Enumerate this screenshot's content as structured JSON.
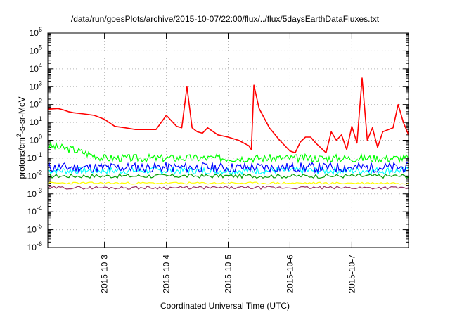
{
  "chart_data": {
    "type": "line",
    "title": "/data/run/goesPlots/archive/2015-10-07/22:00/flux/../flux/5daysEarthDataFluxes.txt",
    "xlabel": "Coordinated Universal Time (UTC)",
    "ylabel": {
      "pre": "protons/cm",
      "sup": "2",
      "post": "-s-sr-MeV"
    },
    "x_range": [
      "2015-10-02T02:00",
      "2015-10-07T22:00"
    ],
    "x_ticks": [
      "2015-10-3",
      "2015-10-4",
      "2015-10-5",
      "2015-10-6",
      "2015-10-7"
    ],
    "y_scale": "log",
    "ylim": [
      1e-06,
      1000000.0
    ],
    "y_ticks": [
      {
        "base": "10",
        "exp": "-6"
      },
      {
        "base": "10",
        "exp": "-5"
      },
      {
        "base": "10",
        "exp": "-4"
      },
      {
        "base": "10",
        "exp": "-3"
      },
      {
        "base": "10",
        "exp": "-2"
      },
      {
        "base": "10",
        "exp": "-1"
      },
      {
        "base": "10",
        "exp": "0"
      },
      {
        "base": "10",
        "exp": "1"
      },
      {
        "base": "10",
        "exp": "2"
      },
      {
        "base": "10",
        "exp": "3"
      },
      {
        "base": "10",
        "exp": "4"
      },
      {
        "base": "10",
        "exp": "5"
      },
      {
        "base": "10",
        "exp": "6"
      }
    ],
    "grid": true,
    "legend": "none",
    "series": [
      {
        "color": "#ff0000",
        "x": [
          "2015-10-02T02:00",
          "2015-10-02T06:00",
          "2015-10-02T08:00",
          "2015-10-02T10:00",
          "2015-10-02T12:00",
          "2015-10-02T16:00",
          "2015-10-02T20:00",
          "2015-10-03T00:00",
          "2015-10-03T04:00",
          "2015-10-03T08:00",
          "2015-10-03T12:00",
          "2015-10-03T16:00",
          "2015-10-03T20:00",
          "2015-10-04T00:00",
          "2015-10-04T04:00",
          "2015-10-04T06:00",
          "2015-10-04T08:00",
          "2015-10-04T10:00",
          "2015-10-04T12:00",
          "2015-10-04T14:00",
          "2015-10-04T16:00",
          "2015-10-04T20:00",
          "2015-10-05T00:00",
          "2015-10-05T04:00",
          "2015-10-05T08:00",
          "2015-10-05T09:00",
          "2015-10-05T10:00",
          "2015-10-05T12:00",
          "2015-10-05T16:00",
          "2015-10-05T20:00",
          "2015-10-06T00:00",
          "2015-10-06T02:00",
          "2015-10-06T04:00",
          "2015-10-06T06:00",
          "2015-10-06T08:00",
          "2015-10-06T10:00",
          "2015-10-06T14:00",
          "2015-10-06T16:00",
          "2015-10-06T18:00",
          "2015-10-06T20:00",
          "2015-10-06T22:00",
          "2015-10-07T00:00",
          "2015-10-07T02:00",
          "2015-10-07T04:00",
          "2015-10-07T06:00",
          "2015-10-07T08:00",
          "2015-10-07T10:00",
          "2015-10-07T12:00",
          "2015-10-07T16:00",
          "2015-10-07T18:00",
          "2015-10-07T20:00",
          "2015-10-07T22:00"
        ],
        "y": [
          55,
          60,
          50,
          40,
          35,
          30,
          25,
          15,
          6,
          5,
          4,
          4,
          4,
          25,
          6,
          5,
          1000,
          5,
          3,
          2.5,
          5,
          2,
          1.5,
          1,
          0.5,
          0.3,
          1200,
          60,
          5,
          1,
          0.25,
          0.2,
          0.8,
          1.5,
          1.5,
          0.7,
          0.2,
          3,
          1,
          2,
          0.3,
          6,
          0.7,
          3000,
          1,
          5,
          0.4,
          3,
          5,
          100,
          10,
          2
        ]
      },
      {
        "color": "#00ff00",
        "x": [
          "2015-10-02T02:00",
          "2015-10-02T12:00",
          "2015-10-03T00:00",
          "2015-10-07T22:00"
        ],
        "y": [
          0.5,
          0.3,
          0.1,
          0.1
        ]
      },
      {
        "color": "#00ffff",
        "x": [
          "2015-10-02T02:00",
          "2015-10-07T22:00"
        ],
        "y": [
          0.02,
          0.02
        ]
      },
      {
        "color": "#0000ff",
        "x": [
          "2015-10-02T02:00",
          "2015-10-07T22:00"
        ],
        "y": [
          0.03,
          0.03
        ]
      },
      {
        "color": "#00a000",
        "x": [
          "2015-10-02T02:00",
          "2015-10-07T22:00"
        ],
        "y": [
          0.01,
          0.01
        ]
      },
      {
        "color": "#ffff00",
        "x": [
          "2015-10-02T02:00",
          "2015-10-07T22:00"
        ],
        "y": [
          0.004,
          0.004
        ]
      },
      {
        "color": "#993366",
        "x": [
          "2015-10-02T02:00",
          "2015-10-07T22:00"
        ],
        "y": [
          0.0022,
          0.0022
        ]
      }
    ]
  }
}
